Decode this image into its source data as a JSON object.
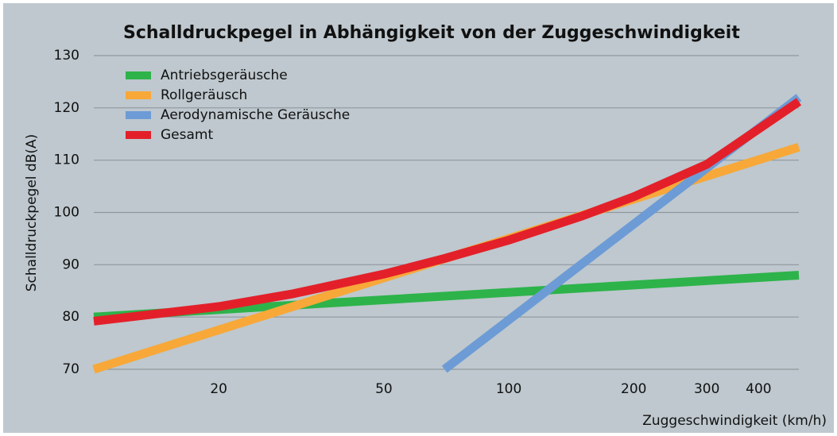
{
  "chart_data": {
    "type": "line",
    "title": "Schalldruckpegel in Abhängigkeit von der Zuggeschwindigkeit",
    "x_label": "Zuggeschwindigkeit (km/h)",
    "y_label": "Schalldruckpegel dB(A)",
    "x_log": true,
    "grid": true,
    "legend": "upper left",
    "xlim": [
      10,
      500
    ],
    "ylim": [
      70,
      130
    ],
    "xticks": [
      20,
      50,
      100,
      200,
      300,
      400
    ],
    "yticks": [
      70,
      80,
      90,
      100,
      110,
      120,
      130
    ],
    "series": [
      {
        "name": "Antriebsgeräusche",
        "color": "#2db34a",
        "x": [
          10,
          500
        ],
        "values": [
          80,
          88
        ]
      },
      {
        "name": "Rollgeräusch",
        "color": "#f7a839",
        "x": [
          10,
          500
        ],
        "values": [
          70,
          112.5
        ]
      },
      {
        "name": "Aerodynamische Geräusche",
        "color": "#6d9bd6",
        "x": [
          70,
          500
        ],
        "values": [
          70,
          122
        ]
      },
      {
        "name": "Gesamt",
        "color": "#e3202a",
        "x": [
          10,
          20,
          30,
          50,
          70,
          100,
          150,
          200,
          300,
          500
        ],
        "values": [
          79.2,
          82,
          84.4,
          88.2,
          91.2,
          94.7,
          99.3,
          103,
          109.2,
          121.2
        ]
      }
    ]
  }
}
